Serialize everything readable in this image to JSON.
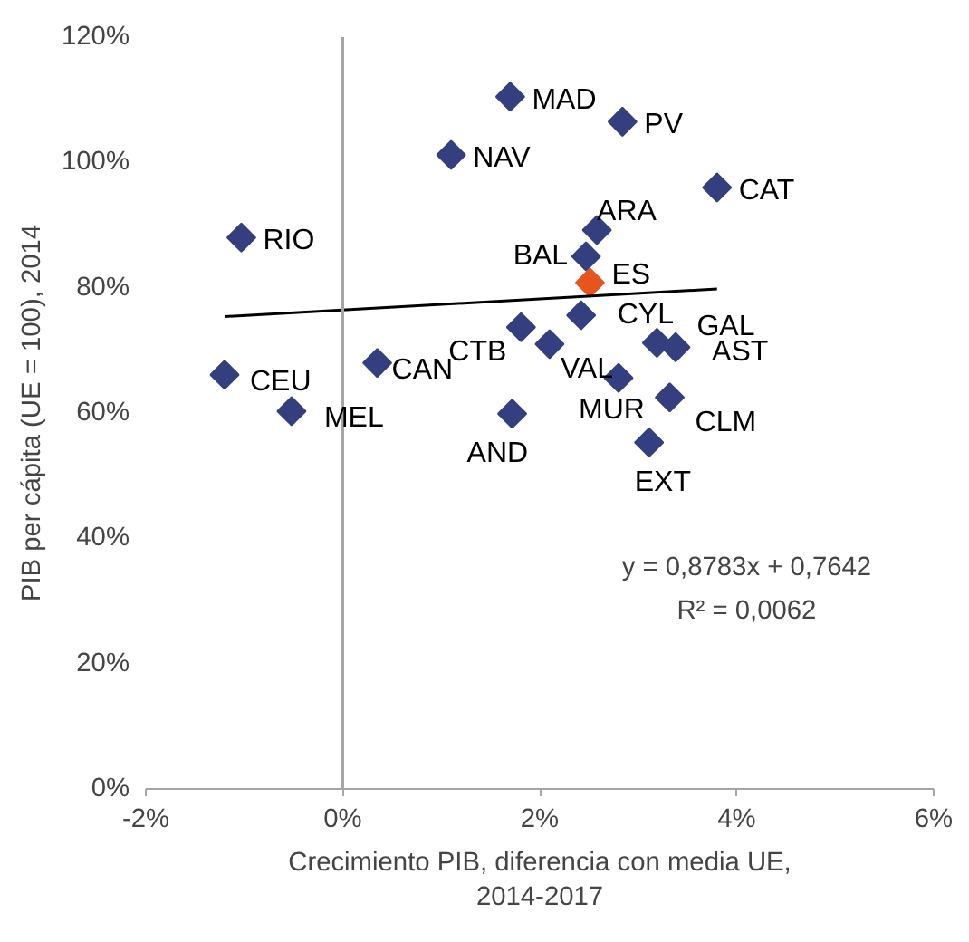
{
  "chart_data": {
    "type": "scatter",
    "xlabel": "Crecimiento PIB, diferencia con media UE,\n2014-2017",
    "ylabel": "PIB per cápita (UE = 100), 2014",
    "xlim": [
      -2,
      6
    ],
    "xticks": [
      {
        "value": -2,
        "label": "-2%"
      },
      {
        "value": 0,
        "label": "0%"
      },
      {
        "value": 2,
        "label": "2%"
      },
      {
        "value": 4,
        "label": "4%"
      },
      {
        "value": 6,
        "label": "6%"
      }
    ],
    "ylim": [
      0,
      120
    ],
    "yticks": [
      {
        "value": 0,
        "label": "0%"
      },
      {
        "value": 20,
        "label": "20%"
      },
      {
        "value": 40,
        "label": "40%"
      },
      {
        "value": 60,
        "label": "60%"
      },
      {
        "value": 80,
        "label": "80%"
      },
      {
        "value": 100,
        "label": "100%"
      },
      {
        "value": 120,
        "label": "120%"
      }
    ],
    "grid": false,
    "ref_lines": [
      {
        "axis": "x",
        "value": 0,
        "color": "#a6a6a6"
      }
    ],
    "annotations": [
      "y = 0,8783x + 0,7642",
      "R² = 0,0062"
    ],
    "series": [
      {
        "color": "#333f7f",
        "marker": "diamond",
        "x": [
          1.7,
          2.84,
          1.1,
          3.8,
          2.58,
          -1.03,
          2.47,
          1.81,
          2.1,
          2.42,
          3.19,
          3.38,
          2.8,
          3.32,
          3.11,
          1.72,
          0.35,
          -1.2,
          -0.52
        ],
        "values": [
          110.5,
          106.5,
          101.2,
          96.0,
          89.2,
          88.0,
          85.0,
          73.7,
          71.0,
          75.6,
          71.2,
          70.5,
          65.6,
          62.5,
          55.3,
          59.9,
          68.0,
          66.1,
          60.3
        ],
        "value_labels": [
          "MAD",
          "PV",
          "NAV",
          "CAT",
          "ARA",
          "RIO",
          "BAL",
          "CTB",
          "VAL",
          "CYL",
          "GAL",
          "AST",
          "MUR",
          "CLM",
          "EXT",
          "AND",
          "CAN",
          "CEU",
          "MEL"
        ]
      },
      {
        "color": "#e8541e",
        "marker": "diamond",
        "x": [
          2.51
        ],
        "values": [
          80.8
        ],
        "value_labels": [
          "ES"
        ]
      },
      {
        "type": "line",
        "color": "#000000",
        "marker": "none",
        "x": [
          -1.2,
          3.8
        ],
        "values": [
          75.4,
          79.8
        ]
      }
    ]
  }
}
